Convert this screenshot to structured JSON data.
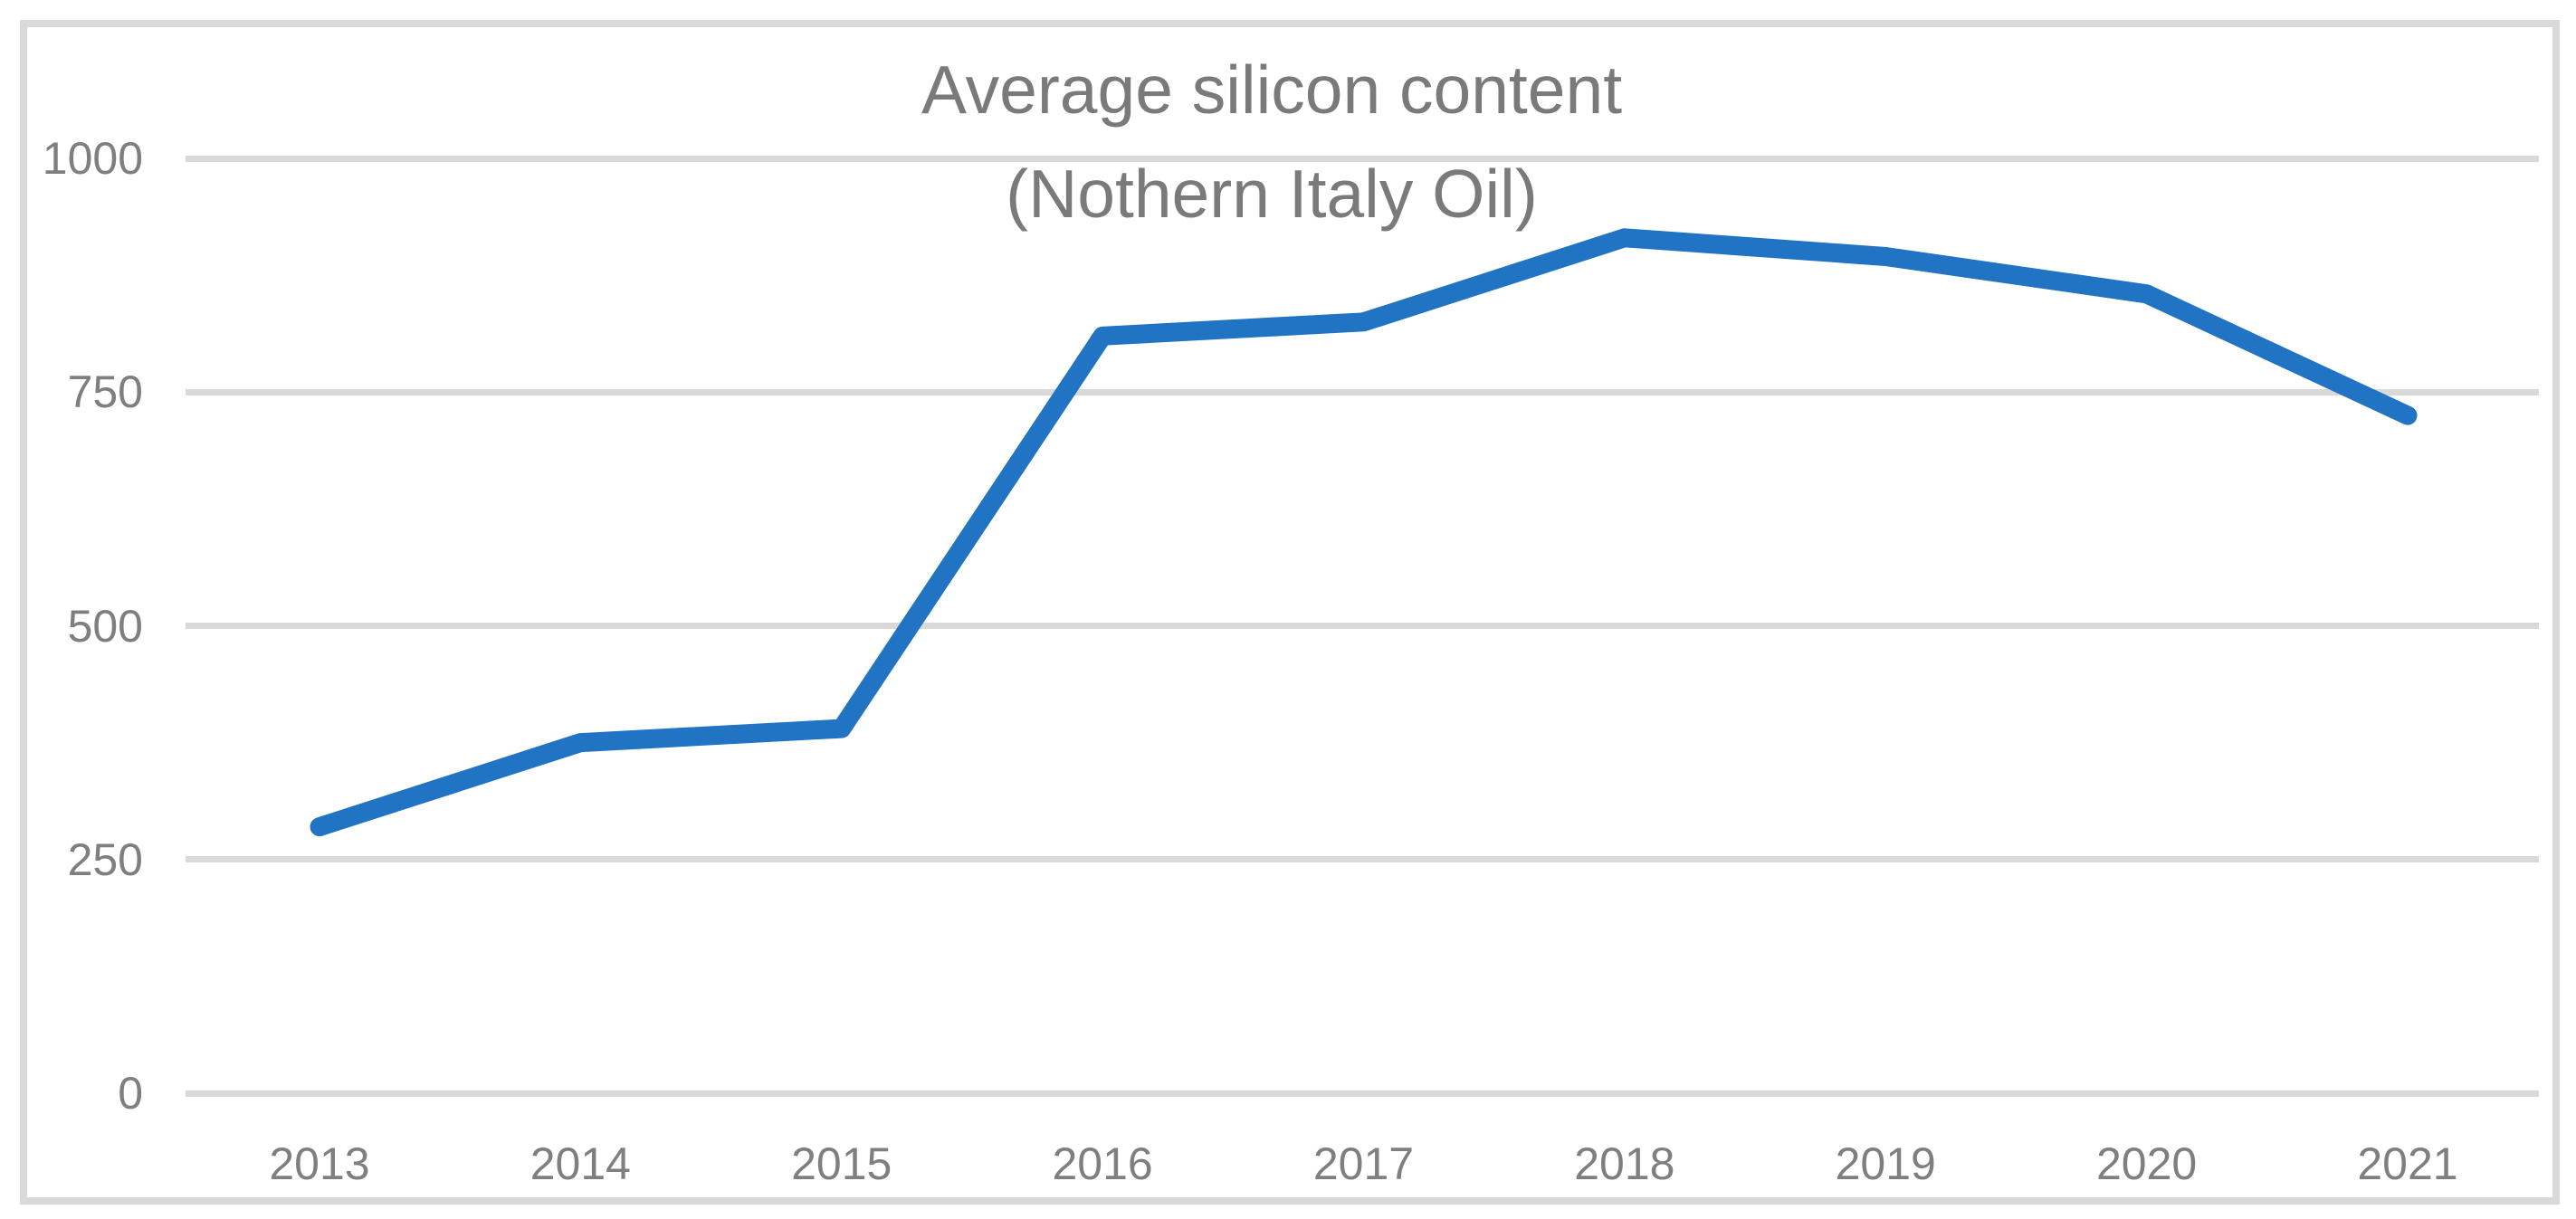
{
  "chart_data": {
    "type": "line",
    "title_line1": "Average silicon content",
    "title_line2": "(Nothern Italy Oil)",
    "categories": [
      "2013",
      "2014",
      "2015",
      "2016",
      "2017",
      "2018",
      "2019",
      "2020",
      "2021"
    ],
    "series": [
      {
        "name": "Average silicon content (Nothern Italy Oil)",
        "values": [
          285,
          375,
          390,
          810,
          825,
          915,
          895,
          855,
          725
        ]
      }
    ],
    "xlabel": "",
    "ylabel": "",
    "y_ticks": [
      0,
      250,
      500,
      750,
      1000
    ],
    "ylim": [
      0,
      1000
    ],
    "grid": "horizontal-only",
    "legend": "none",
    "colors": {
      "line": "#2173c4",
      "gridline": "#d9d9d9",
      "tick_text": "#7f7f7f",
      "title_text": "#7a7a7a",
      "frame_border": "#d9d9d9",
      "background": "#ffffff"
    }
  }
}
